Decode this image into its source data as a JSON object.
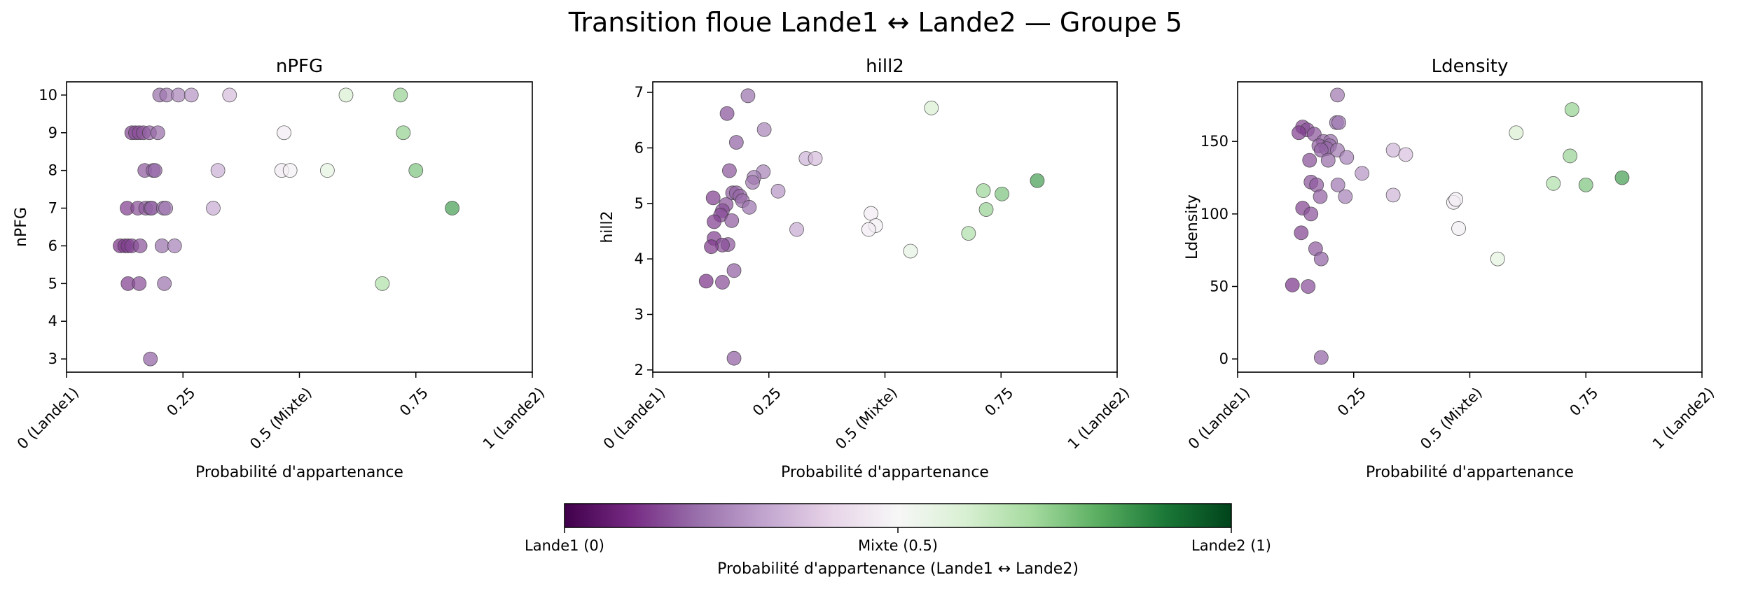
{
  "figure": {
    "title": "Transition floue Lande1 ↔ Lande2 — Groupe 5"
  },
  "colors": {
    "cmap": [
      "#40004b",
      "#762a83",
      "#9970ab",
      "#c2a5cf",
      "#e7d4e8",
      "#f7f7f7",
      "#d9f0d3",
      "#a6dba0",
      "#5aae61",
      "#1b7837",
      "#00441b"
    ],
    "point_edge": "#3a3a3a",
    "axes": "#000000"
  },
  "point_opacity": 0.72,
  "chart_data": [
    {
      "type": "scatter",
      "title": "nPFG",
      "xlabel": "Probabilité d'appartenance",
      "ylabel": "nPFG",
      "xlim": [
        0,
        1
      ],
      "ylim": [
        2.65,
        10.35
      ],
      "xticks": [
        0,
        0.25,
        0.5,
        0.75,
        1
      ],
      "xticklabels": [
        "0 (Lande1)",
        "0.25",
        "0.5 (Mixte)",
        "0.75",
        "1 (Lande2)"
      ],
      "yticks": [
        3,
        4,
        5,
        6,
        7,
        8,
        9,
        10
      ],
      "yticklabels": [
        "3",
        "4",
        "5",
        "6",
        "7",
        "8",
        "9",
        "10"
      ],
      "grid": false,
      "points": [
        {
          "x": 0.2,
          "y": 10
        },
        {
          "x": 0.215,
          "y": 10
        },
        {
          "x": 0.24,
          "y": 10
        },
        {
          "x": 0.268,
          "y": 10
        },
        {
          "x": 0.35,
          "y": 10
        },
        {
          "x": 0.6,
          "y": 10
        },
        {
          "x": 0.717,
          "y": 10
        },
        {
          "x": 0.14,
          "y": 9
        },
        {
          "x": 0.148,
          "y": 9
        },
        {
          "x": 0.156,
          "y": 9
        },
        {
          "x": 0.165,
          "y": 9
        },
        {
          "x": 0.178,
          "y": 9
        },
        {
          "x": 0.196,
          "y": 9
        },
        {
          "x": 0.467,
          "y": 9
        },
        {
          "x": 0.723,
          "y": 9
        },
        {
          "x": 0.168,
          "y": 8
        },
        {
          "x": 0.186,
          "y": 8
        },
        {
          "x": 0.19,
          "y": 8
        },
        {
          "x": 0.325,
          "y": 8
        },
        {
          "x": 0.462,
          "y": 8
        },
        {
          "x": 0.48,
          "y": 8
        },
        {
          "x": 0.56,
          "y": 8
        },
        {
          "x": 0.75,
          "y": 8
        },
        {
          "x": 0.13,
          "y": 7
        },
        {
          "x": 0.153,
          "y": 7
        },
        {
          "x": 0.17,
          "y": 7
        },
        {
          "x": 0.18,
          "y": 7
        },
        {
          "x": 0.183,
          "y": 7
        },
        {
          "x": 0.208,
          "y": 7
        },
        {
          "x": 0.213,
          "y": 7
        },
        {
          "x": 0.315,
          "y": 7
        },
        {
          "x": 0.828,
          "y": 7
        },
        {
          "x": 0.115,
          "y": 6
        },
        {
          "x": 0.125,
          "y": 6
        },
        {
          "x": 0.132,
          "y": 6
        },
        {
          "x": 0.14,
          "y": 6
        },
        {
          "x": 0.158,
          "y": 6
        },
        {
          "x": 0.205,
          "y": 6
        },
        {
          "x": 0.232,
          "y": 6
        },
        {
          "x": 0.132,
          "y": 5
        },
        {
          "x": 0.156,
          "y": 5
        },
        {
          "x": 0.21,
          "y": 5
        },
        {
          "x": 0.678,
          "y": 5
        },
        {
          "x": 0.18,
          "y": 3
        }
      ]
    },
    {
      "type": "scatter",
      "title": "hill2",
      "xlabel": "Probabilité d'appartenance",
      "ylabel": "hill2",
      "xlim": [
        0,
        1
      ],
      "ylim": [
        1.96,
        7.19
      ],
      "xticks": [
        0,
        0.25,
        0.5,
        0.75,
        1
      ],
      "xticklabels": [
        "0 (Lande1)",
        "0.25",
        "0.5 (Mixte)",
        "0.75",
        "1 (Lande2)"
      ],
      "yticks": [
        2,
        3,
        4,
        5,
        6,
        7
      ],
      "yticklabels": [
        "2",
        "3",
        "4",
        "5",
        "6",
        "7"
      ],
      "grid": false,
      "points": [
        {
          "x": 0.205,
          "y": 6.94
        },
        {
          "x": 0.6,
          "y": 6.72
        },
        {
          "x": 0.16,
          "y": 6.62
        },
        {
          "x": 0.24,
          "y": 6.33
        },
        {
          "x": 0.18,
          "y": 6.1
        },
        {
          "x": 0.33,
          "y": 5.81
        },
        {
          "x": 0.35,
          "y": 5.81
        },
        {
          "x": 0.165,
          "y": 5.59
        },
        {
          "x": 0.238,
          "y": 5.57
        },
        {
          "x": 0.218,
          "y": 5.47
        },
        {
          "x": 0.215,
          "y": 5.38
        },
        {
          "x": 0.828,
          "y": 5.41
        },
        {
          "x": 0.712,
          "y": 5.23
        },
        {
          "x": 0.27,
          "y": 5.22
        },
        {
          "x": 0.752,
          "y": 5.17
        },
        {
          "x": 0.172,
          "y": 5.19
        },
        {
          "x": 0.18,
          "y": 5.19
        },
        {
          "x": 0.188,
          "y": 5.13
        },
        {
          "x": 0.193,
          "y": 5.05
        },
        {
          "x": 0.13,
          "y": 5.1
        },
        {
          "x": 0.158,
          "y": 4.98
        },
        {
          "x": 0.15,
          "y": 4.87
        },
        {
          "x": 0.208,
          "y": 4.93
        },
        {
          "x": 0.718,
          "y": 4.89
        },
        {
          "x": 0.47,
          "y": 4.82
        },
        {
          "x": 0.146,
          "y": 4.79
        },
        {
          "x": 0.17,
          "y": 4.69
        },
        {
          "x": 0.132,
          "y": 4.67
        },
        {
          "x": 0.48,
          "y": 4.6
        },
        {
          "x": 0.31,
          "y": 4.53
        },
        {
          "x": 0.465,
          "y": 4.53
        },
        {
          "x": 0.68,
          "y": 4.46
        },
        {
          "x": 0.132,
          "y": 4.37
        },
        {
          "x": 0.162,
          "y": 4.26
        },
        {
          "x": 0.15,
          "y": 4.25
        },
        {
          "x": 0.126,
          "y": 4.22
        },
        {
          "x": 0.555,
          "y": 4.14
        },
        {
          "x": 0.175,
          "y": 3.79
        },
        {
          "x": 0.115,
          "y": 3.6
        },
        {
          "x": 0.15,
          "y": 3.58
        },
        {
          "x": 0.175,
          "y": 2.21
        }
      ]
    },
    {
      "type": "scatter",
      "title": "Ldensity",
      "xlabel": "Probabilité d'appartenance",
      "ylabel": "Ldensity",
      "xlim": [
        0,
        1
      ],
      "ylim": [
        -9.1,
        191.1
      ],
      "xticks": [
        0,
        0.25,
        0.5,
        0.75,
        1
      ],
      "xticklabels": [
        "0 (Lande1)",
        "0.25",
        "0.5 (Mixte)",
        "0.75",
        "1 (Lande2)"
      ],
      "yticks": [
        0,
        50,
        100,
        150
      ],
      "yticklabels": [
        "0",
        "50",
        "100",
        "150"
      ],
      "grid": false,
      "points": [
        {
          "x": 0.215,
          "y": 182
        },
        {
          "x": 0.72,
          "y": 172
        },
        {
          "x": 0.213,
          "y": 163
        },
        {
          "x": 0.218,
          "y": 163
        },
        {
          "x": 0.14,
          "y": 160
        },
        {
          "x": 0.15,
          "y": 158
        },
        {
          "x": 0.132,
          "y": 156
        },
        {
          "x": 0.6,
          "y": 156
        },
        {
          "x": 0.165,
          "y": 155
        },
        {
          "x": 0.185,
          "y": 150
        },
        {
          "x": 0.2,
          "y": 150
        },
        {
          "x": 0.198,
          "y": 147
        },
        {
          "x": 0.175,
          "y": 147
        },
        {
          "x": 0.192,
          "y": 145
        },
        {
          "x": 0.18,
          "y": 144
        },
        {
          "x": 0.215,
          "y": 144
        },
        {
          "x": 0.335,
          "y": 144
        },
        {
          "x": 0.362,
          "y": 141
        },
        {
          "x": 0.716,
          "y": 140
        },
        {
          "x": 0.235,
          "y": 139
        },
        {
          "x": 0.195,
          "y": 137
        },
        {
          "x": 0.155,
          "y": 137
        },
        {
          "x": 0.268,
          "y": 128
        },
        {
          "x": 0.828,
          "y": 125
        },
        {
          "x": 0.158,
          "y": 122
        },
        {
          "x": 0.17,
          "y": 120
        },
        {
          "x": 0.68,
          "y": 121
        },
        {
          "x": 0.216,
          "y": 120
        },
        {
          "x": 0.75,
          "y": 120
        },
        {
          "x": 0.335,
          "y": 113
        },
        {
          "x": 0.232,
          "y": 112
        },
        {
          "x": 0.178,
          "y": 112
        },
        {
          "x": 0.465,
          "y": 108
        },
        {
          "x": 0.47,
          "y": 110
        },
        {
          "x": 0.14,
          "y": 104
        },
        {
          "x": 0.158,
          "y": 100
        },
        {
          "x": 0.476,
          "y": 90
        },
        {
          "x": 0.137,
          "y": 87
        },
        {
          "x": 0.168,
          "y": 76
        },
        {
          "x": 0.18,
          "y": 69
        },
        {
          "x": 0.56,
          "y": 69
        },
        {
          "x": 0.118,
          "y": 51
        },
        {
          "x": 0.152,
          "y": 50
        },
        {
          "x": 0.18,
          "y": 1
        }
      ]
    }
  ],
  "colorbar": {
    "label": "Probabilité d'appartenance (Lande1 ↔ Lande2)",
    "ticks": [
      0,
      0.5,
      1
    ],
    "ticklabels": [
      "Lande1 (0)",
      "Mixte (0.5)",
      "Lande2 (1)"
    ]
  }
}
